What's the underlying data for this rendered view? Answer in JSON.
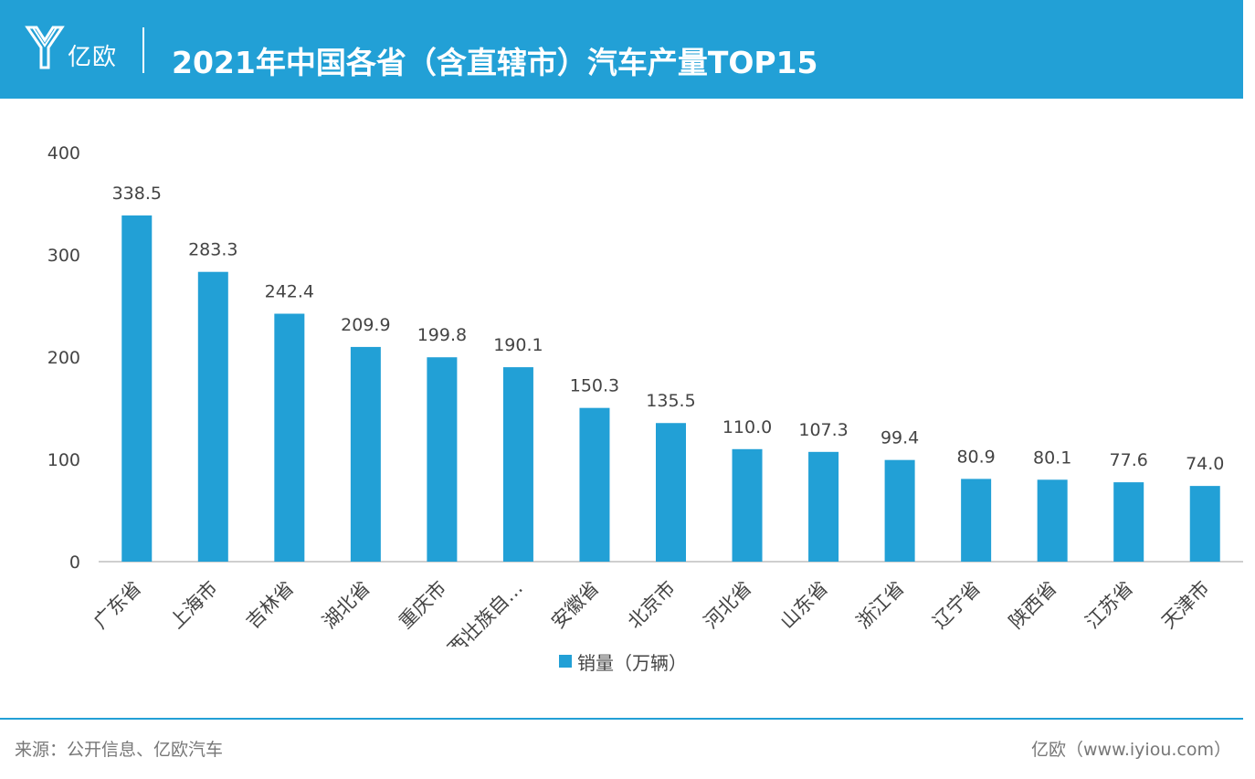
{
  "header": {
    "brand": "亿欧",
    "title": "2021年中国各省（含直辖市）汽车产量TOP15",
    "color": "#22a0d6"
  },
  "chart_data": {
    "type": "bar",
    "title": "2021年中国各省（含直辖市）汽车产量TOP15",
    "xlabel": "",
    "ylabel": "",
    "ylim": [
      0,
      400
    ],
    "yticks": [
      0,
      100,
      200,
      300,
      400
    ],
    "grid": false,
    "legend_position": "bottom",
    "categories": [
      "广东省",
      "上海市",
      "吉林省",
      "湖北省",
      "重庆市",
      "广西壮族自…",
      "安徽省",
      "北京市",
      "河北省",
      "山东省",
      "浙江省",
      "辽宁省",
      "陕西省",
      "江苏省",
      "天津市"
    ],
    "series": [
      {
        "name": "销量（万辆）",
        "color": "#22a0d6",
        "values": [
          338.5,
          283.3,
          242.4,
          209.9,
          199.8,
          190.1,
          150.3,
          135.5,
          110.0,
          107.3,
          99.4,
          80.9,
          80.1,
          77.6,
          74.0
        ],
        "value_labels": [
          "338.5",
          "283.3",
          "242.4",
          "209.9",
          "199.8",
          "190.1",
          "150.3",
          "135.5",
          "110.0",
          "107.3",
          "99.4",
          "80.9",
          "80.1",
          "77.6",
          "74.0"
        ]
      }
    ]
  },
  "footer": {
    "source": "来源：公开信息、亿欧汽车",
    "credit": "亿欧（www.iyiou.com）"
  }
}
